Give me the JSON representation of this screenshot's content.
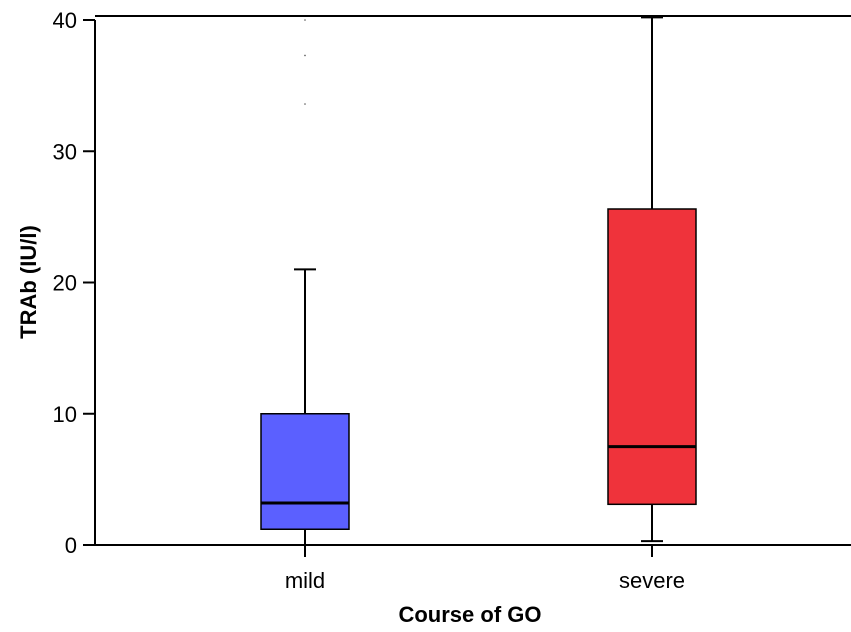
{
  "chart_data": {
    "type": "boxplot",
    "title": "",
    "xlabel": "Course of GO",
    "ylabel": "TRAb (IU/l)",
    "ylim": [
      0,
      40
    ],
    "yticks": [
      0,
      10,
      20,
      30,
      40
    ],
    "grid": false,
    "categories": [
      "mild",
      "severe"
    ],
    "boxes": [
      {
        "category": "mild",
        "color": "#5b60ff",
        "whisker_low": 0,
        "q1": 1.2,
        "median": 3.2,
        "q3": 10.0,
        "whisker_high": 21,
        "outliers": [
          33.6,
          37.3,
          40.0
        ]
      },
      {
        "category": "severe",
        "color": "#ef333b",
        "whisker_low": 0.3,
        "q1": 3.1,
        "median": 7.5,
        "q3": 25.6,
        "whisker_high": 40.2,
        "outliers": []
      }
    ]
  }
}
